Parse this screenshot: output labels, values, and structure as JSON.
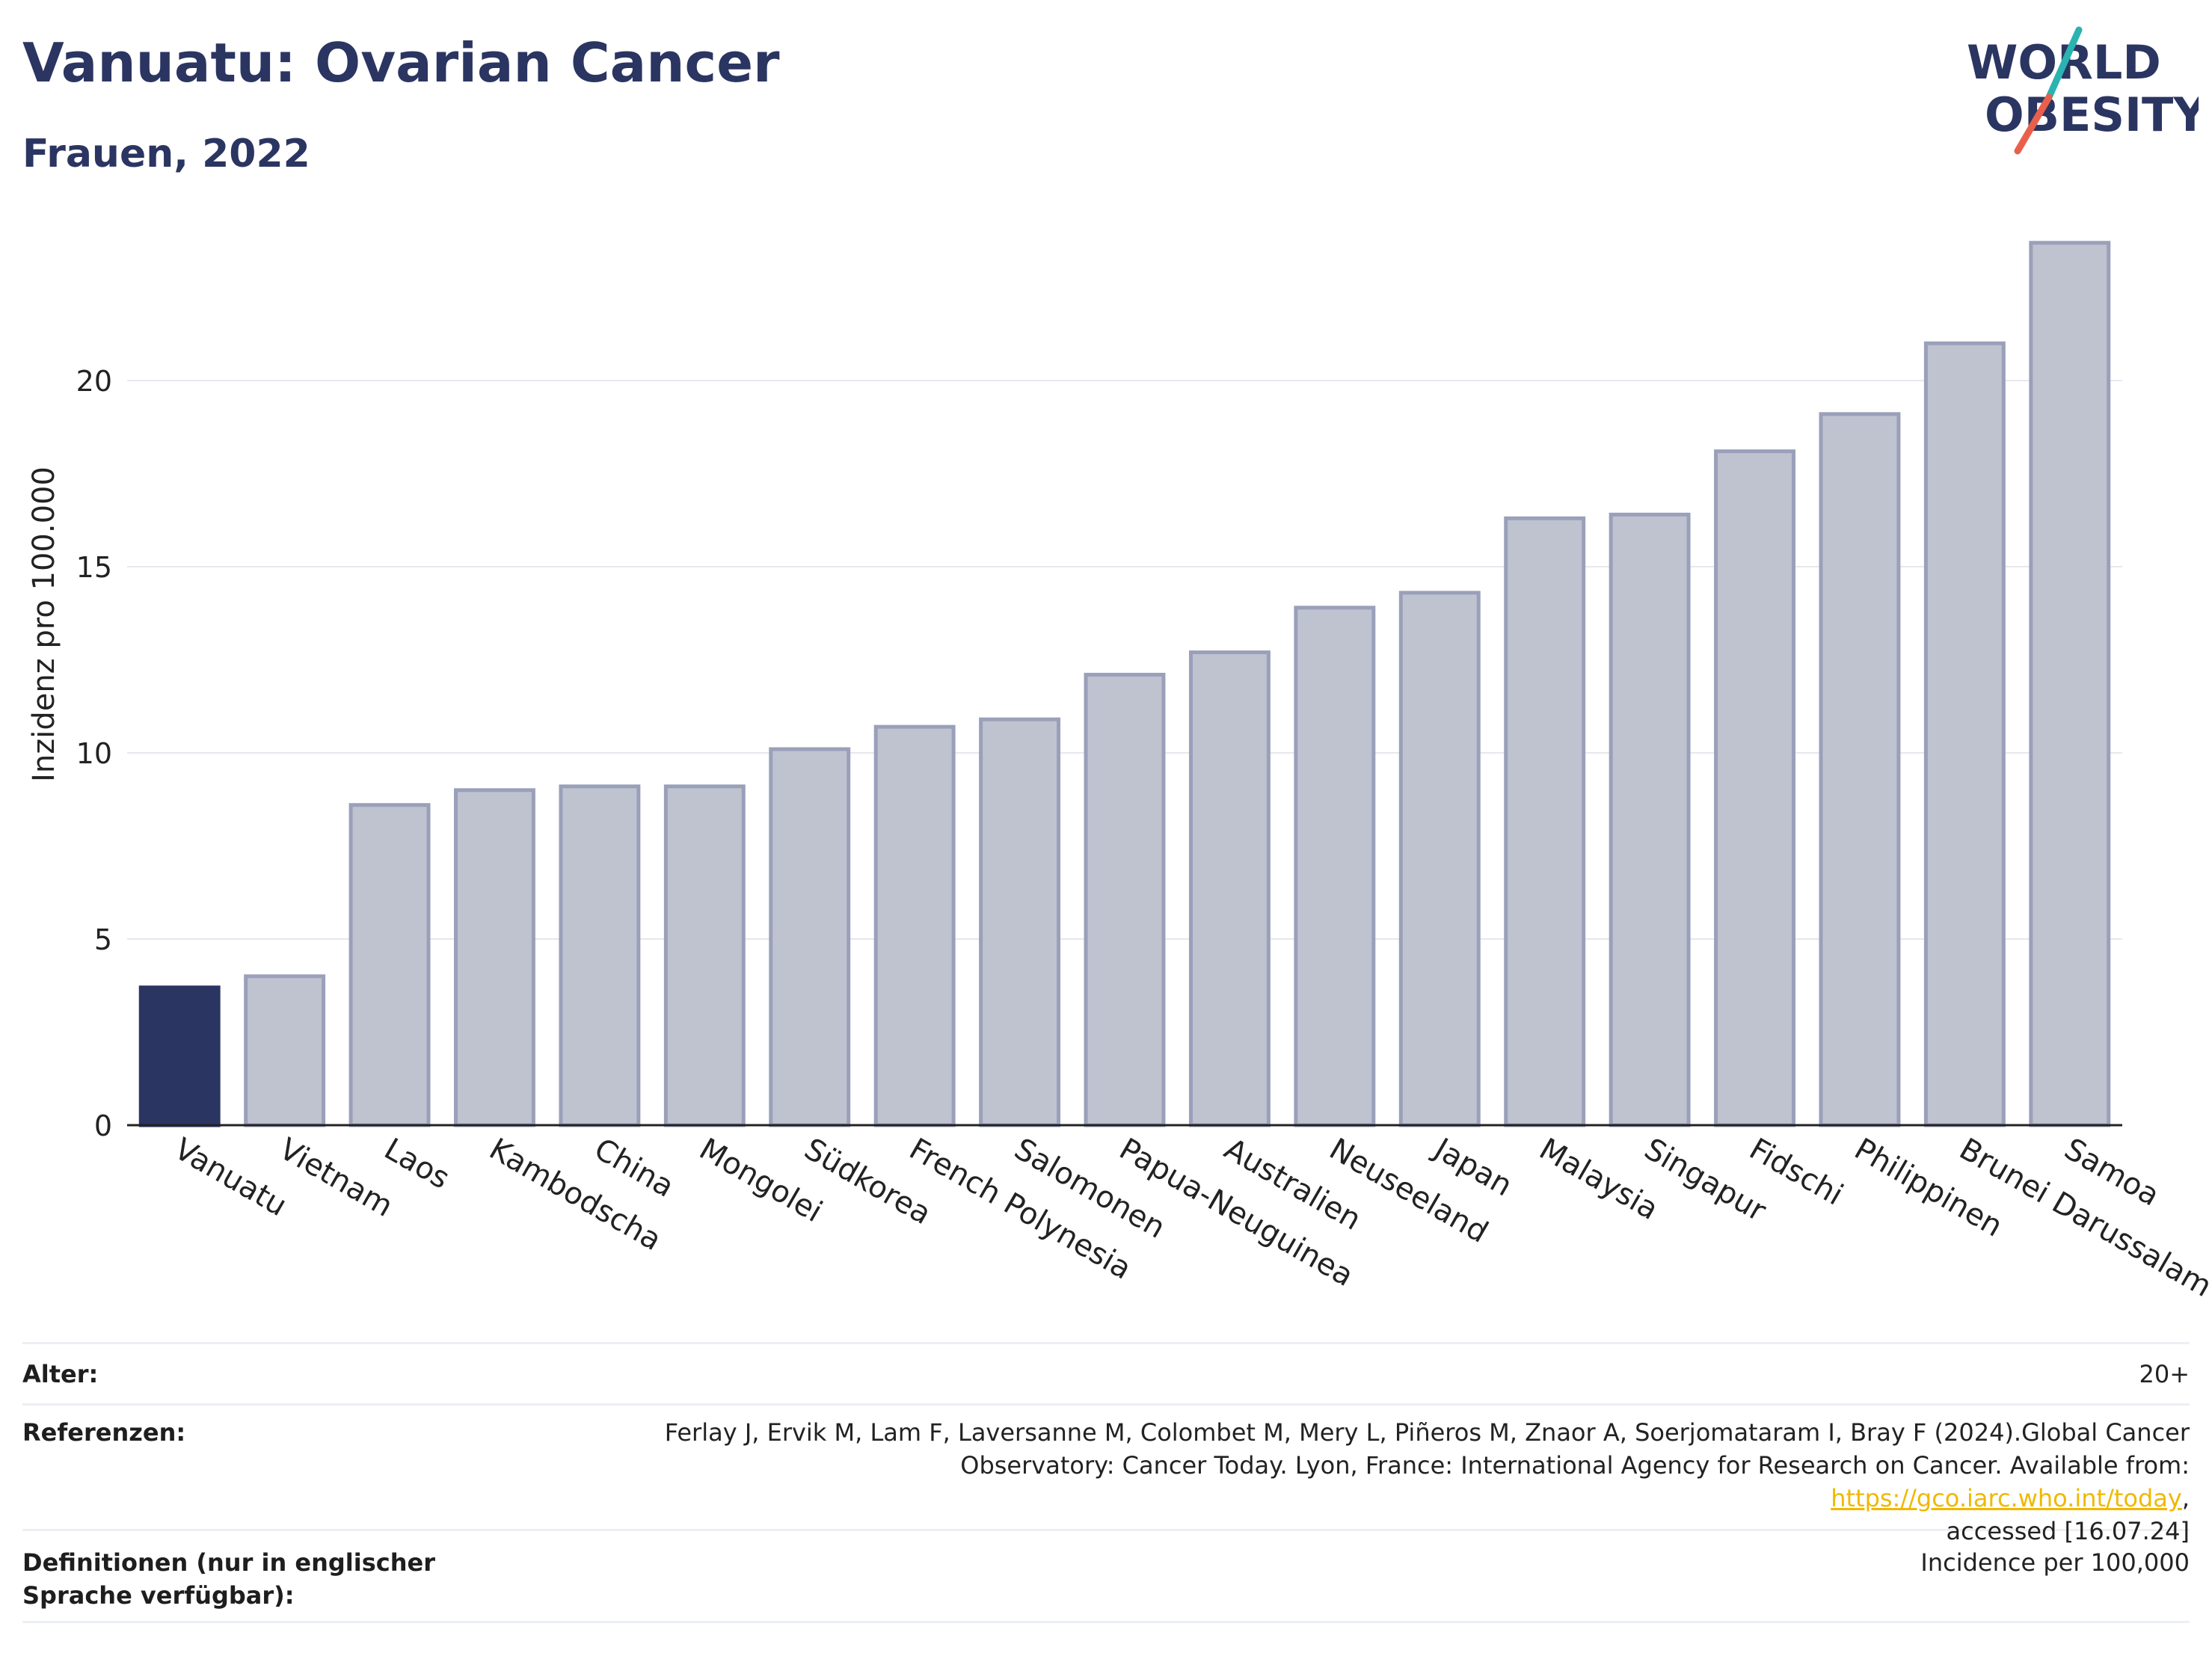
{
  "header": {
    "title": "Vanuatu: Ovarian Cancer",
    "subtitle": "Frauen, 2022",
    "logo_line1": "WORLD",
    "logo_line2": "OBESITY"
  },
  "chart_data": {
    "type": "bar",
    "categories": [
      "Vanuatu",
      "Vietnam",
      "Laos",
      "Kambodscha",
      "China",
      "Mongolei",
      "Südkorea",
      "French Polynesia",
      "Salomonen",
      "Papua-Neuguinea",
      "Australien",
      "Neuseeland",
      "Japan",
      "Malaysia",
      "Singapur",
      "Fidschi",
      "Philippinen",
      "Brunei Darussalam",
      "Samoa"
    ],
    "values": [
      3.7,
      4.0,
      8.6,
      9.0,
      9.1,
      9.1,
      10.1,
      10.7,
      10.9,
      12.1,
      12.7,
      13.9,
      14.3,
      16.3,
      16.4,
      18.1,
      19.1,
      21.0,
      23.7
    ],
    "highlight": "Vanuatu",
    "ylabel": "Inzidenz pro 100.000",
    "xlabel": "",
    "ylim": [
      0,
      25
    ],
    "yticks": [
      0,
      5,
      10,
      15,
      20
    ],
    "grid": true,
    "colors": {
      "highlight": "#2b3561",
      "bar": "#bfc3d0",
      "bar_border": "#9aa0b9",
      "grid": "#e6e8ee",
      "axis": "#222222"
    }
  },
  "meta": {
    "age_label": "Alter:",
    "age_value": "20+",
    "ref_label": "Referenzen:",
    "ref_text_1": "Ferlay J, Ervik M, Lam F, Laversanne M, Colombet M, Mery L, Piñeros M, Znaor A, Soerjomataram I, Bray F (2024).Global Cancer",
    "ref_text_2": "Observatory: Cancer Today. Lyon, France: International Agency for Research on Cancer. Available from: ",
    "ref_link": "https://gco.iarc.who.int/today",
    "ref_text_3": ",",
    "ref_text_4": "accessed [16.07.24]",
    "def_label": "Definitionen (nur in englischer Sprache verfügbar):",
    "def_value": "Incidence per 100,000"
  },
  "colors": {
    "brand": "#2b3561",
    "logo_teal": "#2ab3b1",
    "logo_coral": "#e8604c",
    "link": "#f0b800"
  }
}
